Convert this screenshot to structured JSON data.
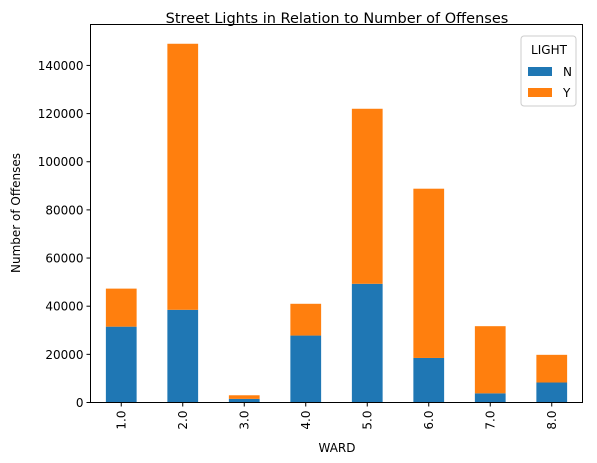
{
  "chart_data": {
    "type": "bar",
    "stacked": true,
    "title": "Street Lights in Relation to Number of Offenses",
    "xlabel": "WARD",
    "ylabel": "Number of Offenses",
    "categories": [
      "1.0",
      "2.0",
      "3.0",
      "4.0",
      "5.0",
      "6.0",
      "7.0",
      "8.0"
    ],
    "series": [
      {
        "name": "N",
        "color": "#1f77b4",
        "values": [
          31500,
          38500,
          1500,
          27800,
          49300,
          18500,
          3800,
          8300
        ]
      },
      {
        "name": "Y",
        "color": "#ff7f0e",
        "values": [
          15800,
          110500,
          1500,
          13200,
          72700,
          70300,
          27900,
          11500
        ]
      }
    ],
    "ylim": [
      0,
      157000
    ],
    "yticks": [
      0,
      20000,
      40000,
      60000,
      80000,
      100000,
      120000,
      140000
    ],
    "legend": {
      "title": "LIGHT",
      "placement": "top-right"
    },
    "grid": false
  }
}
